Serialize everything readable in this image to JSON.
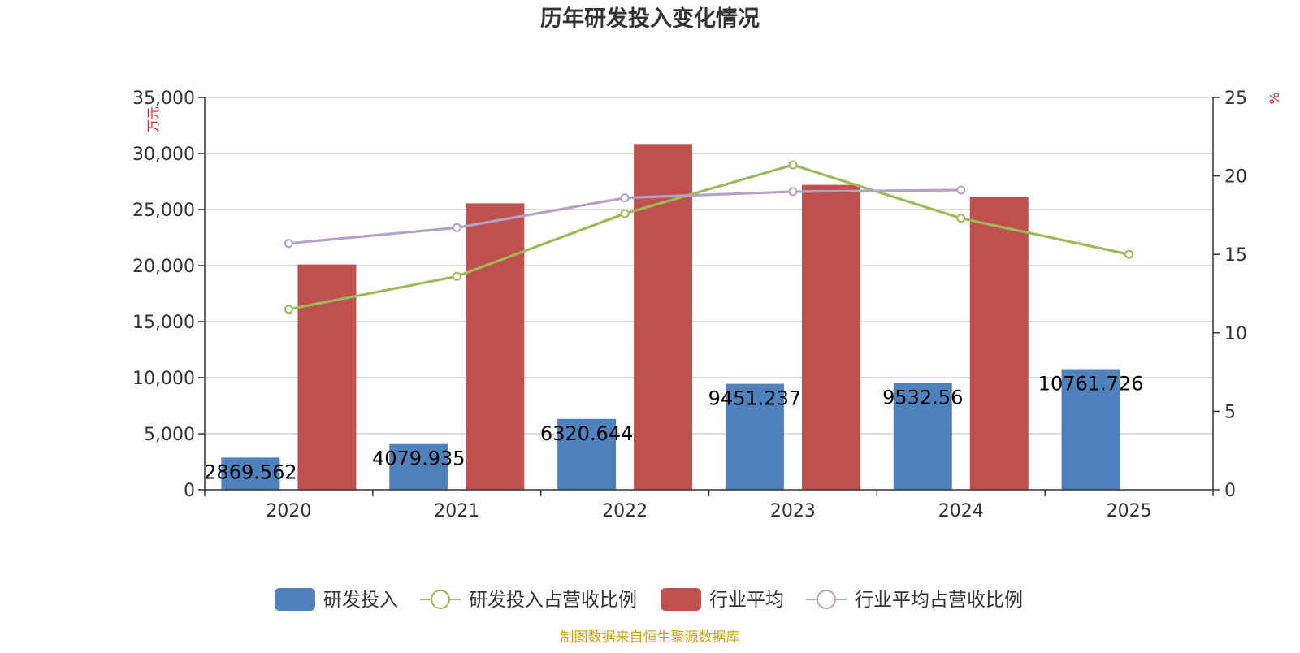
{
  "chart_data": {
    "type": "bar",
    "title": "历年研发投入变化情况",
    "categories": [
      "2020",
      "2021",
      "2022",
      "2023",
      "2024",
      "2025"
    ],
    "y_left": {
      "label": "万元",
      "min": 0,
      "max": 35000,
      "ticks": [
        0,
        5000,
        10000,
        15000,
        20000,
        25000,
        30000,
        35000
      ],
      "tick_labels": [
        "0",
        "5,000",
        "10,000",
        "15,000",
        "20,000",
        "25,000",
        "30,000",
        "35,000"
      ]
    },
    "y_right": {
      "label": "%",
      "min": 0,
      "max": 25,
      "ticks": [
        0,
        5,
        10,
        15,
        20,
        25
      ],
      "tick_labels": [
        "0",
        "5",
        "10",
        "15",
        "20",
        "25"
      ]
    },
    "grid": true,
    "legend_position": "bottom-center",
    "series": [
      {
        "name": "研发投入",
        "type": "bar",
        "axis": "left",
        "color": "#4f81bd",
        "values": [
          2869.562,
          4079.935,
          6320.644,
          9451.237,
          9532.56,
          10761.726
        ],
        "labels": [
          "2869.562",
          "4079.935",
          "6320.644",
          "9451.237",
          "9532.56",
          "10761.726"
        ]
      },
      {
        "name": "研发投入占营收比例",
        "type": "line",
        "axis": "right",
        "color": "#9bbb59",
        "values": [
          11.5,
          13.6,
          17.6,
          20.7,
          17.3,
          15.0
        ]
      },
      {
        "name": "行业平均",
        "type": "bar",
        "axis": "left",
        "color": "#c0504d",
        "values": [
          20100,
          25550,
          30850,
          27200,
          26100,
          null
        ]
      },
      {
        "name": "行业平均占营收比例",
        "type": "line",
        "axis": "right",
        "color": "#b3a2c7",
        "values": [
          15.7,
          16.7,
          18.6,
          19.0,
          19.1,
          null
        ]
      }
    ],
    "source_note": "制图数据来自恒生聚源数据库"
  }
}
